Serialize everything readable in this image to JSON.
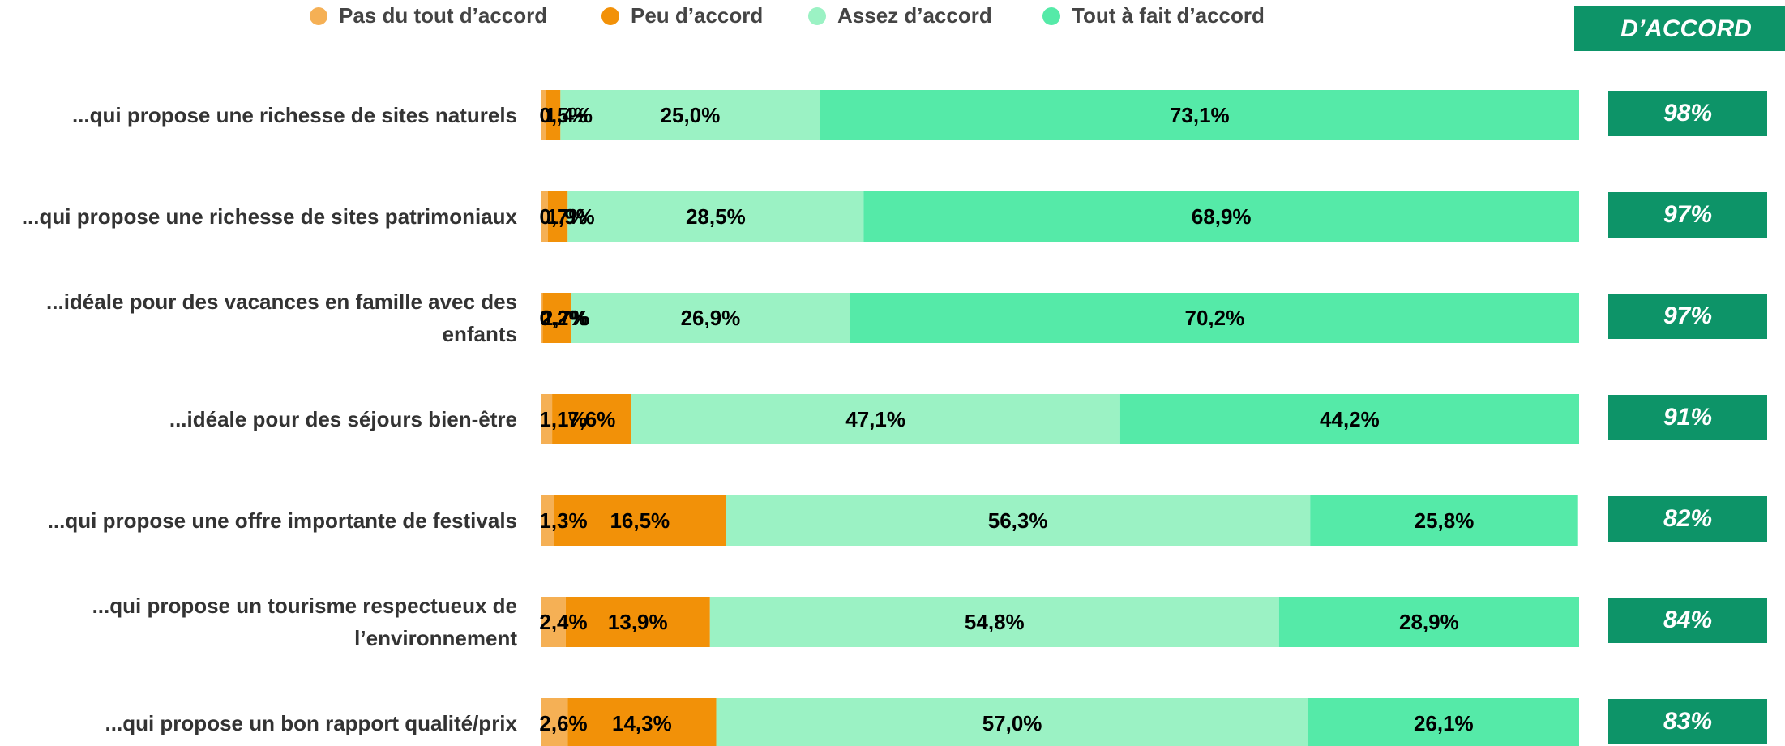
{
  "chart_data": {
    "type": "stacked_bar_horizontal",
    "categories": [
      "...qui propose une richesse de sites naturels",
      "...qui propose une richesse de sites patrimoniaux",
      "...idéale pour des vacances en famille avec des enfants",
      "...idéale pour des séjours bien-être",
      "...qui propose une offre importante de festivals",
      "...qui propose un tourisme respectueux de l’environnement",
      "...qui propose un bon rapport qualité/prix"
    ],
    "series": [
      {
        "name": "Pas du tout d’accord",
        "color": "#f5b055",
        "values": [
          0.5,
          0.7,
          0.2,
          1.1,
          1.3,
          2.4,
          2.6
        ],
        "value_labels": [
          "0,5%",
          "0,7%",
          "0,2%",
          "1,1%",
          "1,3%",
          "2,4%",
          "2,6%"
        ]
      },
      {
        "name": "Peu d’accord",
        "color": "#f29108",
        "values": [
          1.4,
          1.9,
          2.7,
          7.6,
          16.5,
          13.9,
          14.3
        ],
        "value_labels": [
          "1,4%",
          "1,9%",
          "2,7%",
          "7,6%",
          "16,5%",
          "13,9%",
          "14,3%"
        ]
      },
      {
        "name": "Assez d’accord",
        "color": "#9bf2c4",
        "values": [
          25.0,
          28.5,
          26.9,
          47.1,
          56.3,
          54.8,
          57.0
        ],
        "value_labels": [
          "25,0%",
          "28,5%",
          "26,9%",
          "47,1%",
          "56,3%",
          "54,8%",
          "57,0%"
        ]
      },
      {
        "name": "Tout à fait d’accord",
        "color": "#55eaa8",
        "values": [
          73.1,
          68.9,
          70.2,
          44.2,
          25.8,
          28.9,
          26.1
        ],
        "value_labels": [
          "73,1%",
          "68,9%",
          "70,2%",
          "44,2%",
          "25,8%",
          "28,9%",
          "26,1%"
        ]
      }
    ],
    "xlim": [
      0,
      100
    ],
    "d_accord": {
      "title": "D’ACCORD",
      "color": "#0d9468",
      "values": [
        98,
        97,
        97,
        91,
        82,
        84,
        83
      ],
      "value_labels": [
        "98%",
        "97%",
        "97%",
        "91%",
        "82%",
        "84%",
        "83%"
      ]
    }
  }
}
